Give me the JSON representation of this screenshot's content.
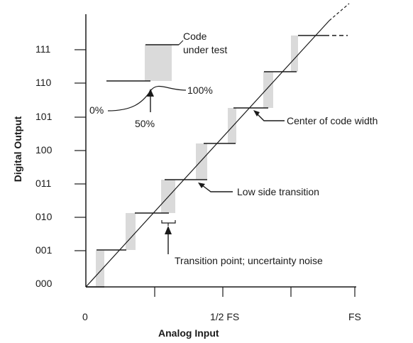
{
  "axes": {
    "x_title": "Analog Input",
    "y_title": "Digital Output",
    "x_ticks": [
      "0",
      "1/2 FS",
      "FS"
    ],
    "y_ticks": [
      "000",
      "001",
      "010",
      "011",
      "100",
      "101",
      "110",
      "111"
    ]
  },
  "inset": {
    "code_label_line1": "Code",
    "code_label_line2": "under test",
    "label_0": "0%",
    "label_100": "100%",
    "label_50": "50%"
  },
  "annotations": {
    "center_of_code_width": "Center of code width",
    "low_side_transition": "Low side transition",
    "transition_point": "Transition point; uncertainty noise"
  },
  "colors": {
    "line": "#1a1a1a",
    "hatch": "#b4b4b4"
  }
}
